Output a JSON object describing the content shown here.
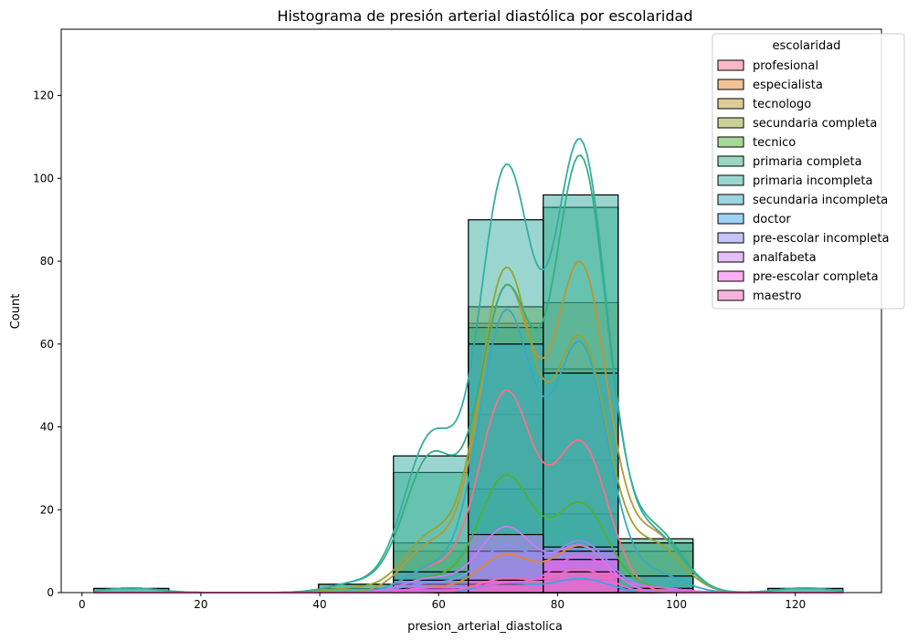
{
  "chart_data": {
    "type": "histogram",
    "title": "Histograma de presión arterial diastólica por escolaridad",
    "xlabel": "presion_arterial_diastolica",
    "ylabel": "Count",
    "xlim": [
      -3.5,
      134.5
    ],
    "ylim": [
      0,
      136
    ],
    "xticks": [
      0,
      20,
      40,
      60,
      80,
      100,
      120
    ],
    "yticks": [
      0,
      20,
      40,
      60,
      80,
      100,
      120
    ],
    "bin_edges": [
      2,
      14.6,
      27.2,
      39.8,
      52.4,
      65,
      77.6,
      90.2,
      102.8,
      115.4,
      128
    ],
    "legend": {
      "title": "escolaridad",
      "position": "upper right"
    },
    "series": [
      {
        "name": "profesional",
        "color": "#f77189",
        "counts": [
          0,
          0,
          0,
          0,
          5,
          43,
          32,
          0,
          0,
          0
        ]
      },
      {
        "name": "especialista",
        "color": "#e48432",
        "counts": [
          0,
          0,
          0,
          0,
          1,
          8,
          10,
          0,
          0,
          0
        ]
      },
      {
        "name": "tecnologo",
        "color": "#bb9832",
        "counts": [
          0,
          0,
          0,
          0,
          10,
          65,
          70,
          12,
          0,
          0
        ]
      },
      {
        "name": "secundaria completa",
        "color": "#97a431",
        "counts": [
          0,
          0,
          0,
          1,
          12,
          69,
          54,
          10,
          0,
          0
        ]
      },
      {
        "name": "tecnico",
        "color": "#50b131",
        "counts": [
          0,
          0,
          0,
          0,
          3,
          25,
          19,
          1,
          0,
          0
        ]
      },
      {
        "name": "primaria completa",
        "color": "#34af84",
        "counts": [
          1,
          0,
          0,
          2,
          29,
          64,
          93,
          13,
          0,
          1
        ]
      },
      {
        "name": "primaria incompleta",
        "color": "#36ad9f",
        "counts": [
          1,
          0,
          0,
          2,
          33,
          90,
          96,
          12,
          0,
          1
        ]
      },
      {
        "name": "secundaria incompleta",
        "color": "#38a9c5",
        "counts": [
          0,
          0,
          0,
          0,
          5,
          60,
          53,
          4,
          0,
          0
        ]
      },
      {
        "name": "doctor",
        "color": "#3ba3ec",
        "counts": [
          0,
          0,
          0,
          0,
          0,
          2,
          3,
          0,
          0,
          0
        ]
      },
      {
        "name": "pre-escolar incompleta",
        "color": "#8e8cf4",
        "counts": [
          0,
          0,
          0,
          0,
          2,
          10,
          11,
          1,
          0,
          0
        ]
      },
      {
        "name": "analfabeta",
        "color": "#c97bf4",
        "counts": [
          0,
          0,
          0,
          0,
          3,
          14,
          10,
          0,
          0,
          0
        ]
      },
      {
        "name": "pre-escolar completa",
        "color": "#f45ee7",
        "counts": [
          0,
          0,
          0,
          0,
          1,
          2,
          8,
          1,
          0,
          0
        ]
      },
      {
        "name": "maestro",
        "color": "#f668b2",
        "counts": [
          0,
          0,
          0,
          0,
          0,
          3,
          5,
          0,
          0,
          0
        ]
      }
    ]
  }
}
